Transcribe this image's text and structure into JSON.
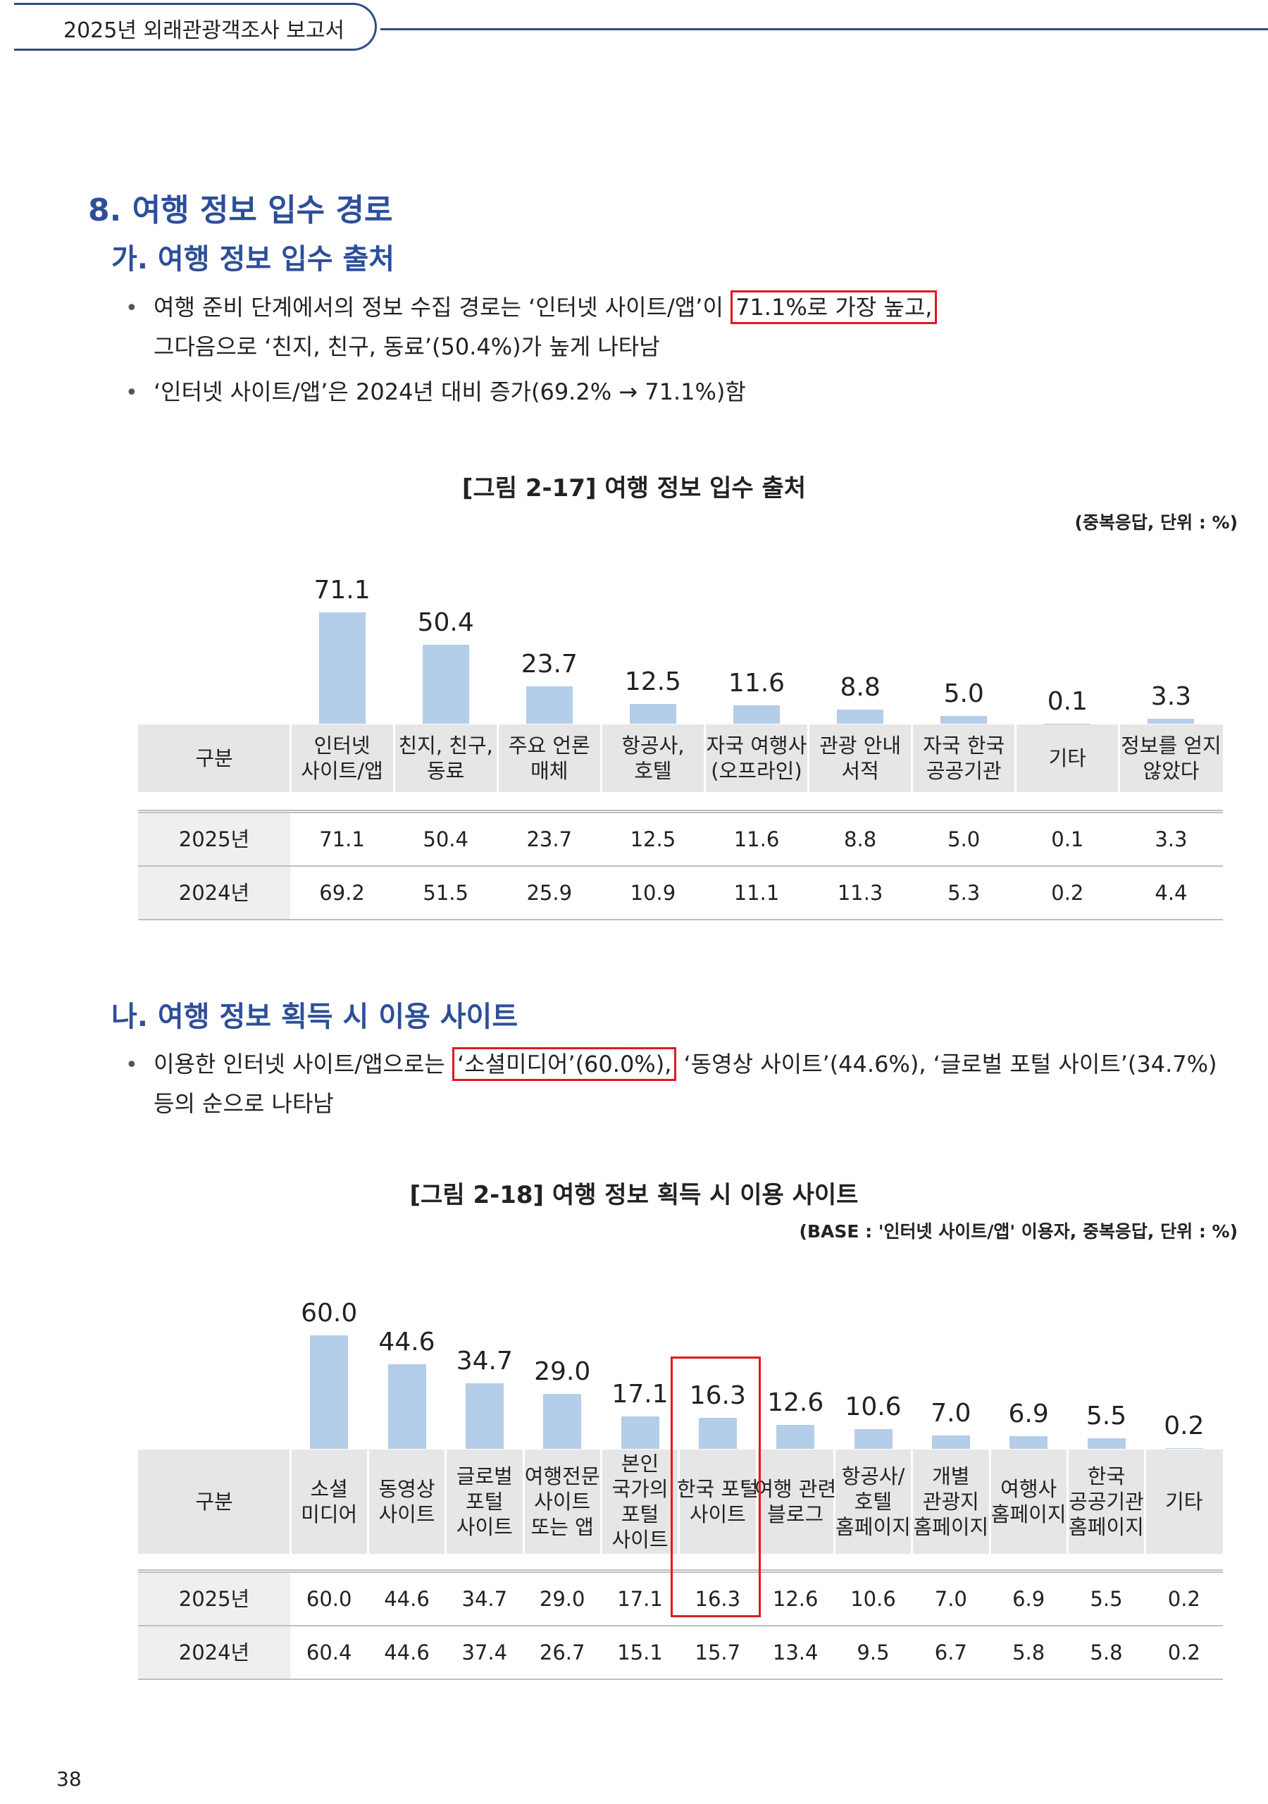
{
  "header": {
    "title": "2025년 외래관광객조사 보고서"
  },
  "section": {
    "heading": "8. 여행 정보 입수 경로",
    "sub_a": "가. 여행 정보 입수 출처",
    "a_bullet1_line1_pre": "여행 준비 단계에서의 정보 수집 경로는 ‘인터넷 사이트/앱’이",
    "a_bullet1_line1_hl": "71.1%로 가장 높고,",
    "a_bullet1_line2": "그다음으로 ‘친지, 친구, 동료’(50.4%)가 높게 나타남",
    "a_bullet2": "‘인터넷 사이트/앱’은 2024년 대비 증가(69.2% → 71.1%)함",
    "sub_b": "나. 여행 정보 획득 시 이용 사이트",
    "b_bullet1_pre": "이용한 인터넷 사이트/앱으로는",
    "b_bullet1_hl": "‘소셜미디어’(60.0%),",
    "b_bullet1_post": "‘동영상 사이트’(44.6%), ‘글로벌 포털 사이트’(34.7%)",
    "b_bullet1_line2": "등의 순으로 나타남"
  },
  "fig1": {
    "title": "[그림 2-17] 여행 정보 입수 출처",
    "unit": "(중복응답, 단위 : %)",
    "row_header": "구분"
  },
  "fig2": {
    "title": "[그림 2-18] 여행 정보 획득 시 이용 사이트",
    "unit": "(BASE : '인터넷 사이트/앱' 이용자, 중복응답, 단위 : %)",
    "row_header": "구분"
  },
  "bar_color": "#b4cde8",
  "highlight_color": "#e3181f",
  "page_number": "38",
  "chart_data": [
    {
      "type": "bar",
      "categories": [
        "인터넷\n사이트/앱",
        "친지, 친구,\n동료",
        "주요 언론\n매체",
        "항공사,\n호텔",
        "자국 여행사\n(오프라인)",
        "관광 안내\n서적",
        "자국 한국\n공공기관",
        "기타",
        "정보를 얻지\n않았다"
      ],
      "series": [
        {
          "name": "2025년",
          "values": [
            "71.1",
            "50.4",
            "23.7",
            "12.5",
            "11.6",
            "8.8",
            "5.0",
            "0.1",
            "3.3"
          ]
        },
        {
          "name": "2024년",
          "values": [
            "69.2",
            "51.5",
            "25.9",
            "10.9",
            "11.1",
            "11.3",
            "5.3",
            "0.2",
            "4.4"
          ]
        }
      ],
      "ylim": [
        0,
        100
      ]
    },
    {
      "type": "bar",
      "categories": [
        "소셜\n미디어",
        "동영상\n사이트",
        "글로벌\n포털\n사이트",
        "여행전문\n사이트\n또는 앱",
        "본인\n국가의\n포털\n사이트",
        "한국 포털\n사이트",
        "여행 관련\n블로그",
        "항공사/\n호텔\n홈페이지",
        "개별\n관광지\n홈페이지",
        "여행사\n홈페이지",
        "한국\n공공기관\n홈페이지",
        "기타"
      ],
      "series": [
        {
          "name": "2025년",
          "values": [
            "60.0",
            "44.6",
            "34.7",
            "29.0",
            "17.1",
            "16.3",
            "12.6",
            "10.6",
            "7.0",
            "6.9",
            "5.5",
            "0.2"
          ]
        },
        {
          "name": "2024년",
          "values": [
            "60.4",
            "44.6",
            "37.4",
            "26.7",
            "15.1",
            "15.7",
            "13.4",
            "9.5",
            "6.7",
            "5.8",
            "5.8",
            "0.2"
          ]
        }
      ],
      "ylim": [
        0,
        100
      ]
    }
  ]
}
